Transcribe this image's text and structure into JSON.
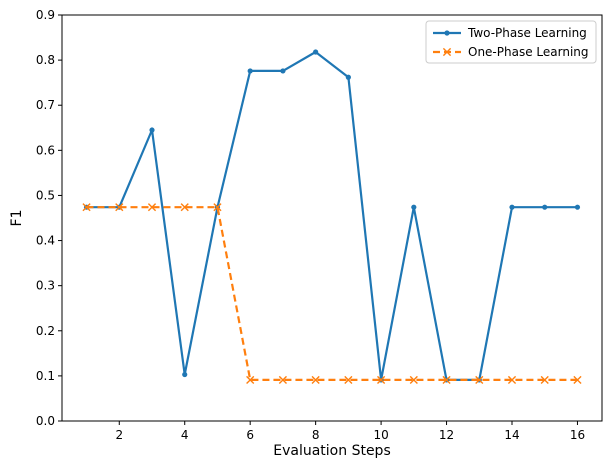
{
  "chart_data": {
    "type": "line",
    "xlabel": "Evaluation Steps",
    "ylabel": "F1",
    "x": [
      1,
      2,
      3,
      4,
      5,
      6,
      7,
      8,
      9,
      10,
      11,
      12,
      13,
      14,
      15,
      16
    ],
    "xlim": [
      0.25,
      16.75
    ],
    "ylim": [
      0.0,
      0.9
    ],
    "xticks": [
      "2",
      "4",
      "6",
      "8",
      "10",
      "12",
      "14",
      "16"
    ],
    "xtick_values": [
      2,
      4,
      6,
      8,
      10,
      12,
      14,
      16
    ],
    "yticks": [
      "0.0",
      "0.1",
      "0.2",
      "0.3",
      "0.4",
      "0.5",
      "0.6",
      "0.7",
      "0.8",
      "0.9"
    ],
    "ytick_values": [
      0.0,
      0.1,
      0.2,
      0.3,
      0.4,
      0.5,
      0.6,
      0.7,
      0.8,
      0.9
    ],
    "grid": false,
    "legend_position": "top-right",
    "series": [
      {
        "name": "Two-Phase Learning",
        "color": "#1f77b4",
        "line_style": "solid",
        "marker": "dot",
        "values": [
          0.474,
          0.474,
          0.645,
          0.103,
          0.474,
          0.776,
          0.776,
          0.818,
          0.762,
          0.091,
          0.474,
          0.091,
          0.091,
          0.474,
          0.474,
          0.474
        ]
      },
      {
        "name": "One-Phase Learning",
        "color": "#ff7f0e",
        "line_style": "dashed",
        "marker": "x",
        "values": [
          0.474,
          0.474,
          0.474,
          0.474,
          0.474,
          0.091,
          0.091,
          0.091,
          0.091,
          0.091,
          0.091,
          0.091,
          0.091,
          0.091,
          0.091,
          0.091
        ]
      }
    ]
  }
}
